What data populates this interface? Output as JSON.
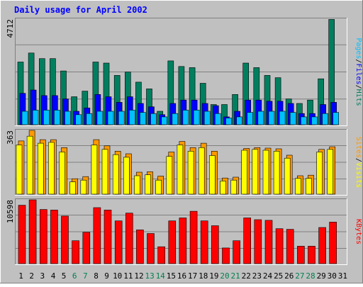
{
  "title": "Daily usage for April 2002",
  "colors": {
    "background": "#c0c0c0",
    "title": "#0000ff",
    "hits": "#007f5f",
    "files": "#0000ff",
    "pages": "#00c0ff",
    "visits": "#ff9900",
    "sites": "#ffff00",
    "kbytes": "#ff0000",
    "weekday_label": "#000000",
    "weekend_label": "#00804f"
  },
  "chart_data": [
    {
      "type": "bar",
      "title": "Daily usage for April 2002",
      "categories": [
        "1",
        "2",
        "3",
        "4",
        "5",
        "6",
        "7",
        "8",
        "9",
        "10",
        "11",
        "12",
        "13",
        "14",
        "15",
        "16",
        "17",
        "18",
        "19",
        "20",
        "21",
        "22",
        "23",
        "24",
        "25",
        "26",
        "27",
        "28",
        "29",
        "30",
        "31"
      ],
      "weekend_days": [
        "6",
        "7",
        "13",
        "14",
        "20",
        "21",
        "27",
        "28"
      ],
      "ymax_label": "4712",
      "ylim": [
        0,
        4712
      ],
      "series": [
        {
          "name": "Hits",
          "values": [
            2800,
            3200,
            2950,
            2950,
            2400,
            1250,
            1500,
            2800,
            2750,
            2200,
            2350,
            1900,
            1600,
            600,
            2850,
            2600,
            2550,
            1850,
            900,
            900,
            1350,
            2750,
            2550,
            2200,
            2100,
            1150,
            950,
            1100,
            2050,
            4700,
            null
          ]
        },
        {
          "name": "Files",
          "values": [
            1400,
            1550,
            1300,
            1300,
            1150,
            600,
            750,
            1350,
            1250,
            1000,
            1250,
            950,
            800,
            450,
            950,
            1100,
            1100,
            950,
            850,
            350,
            600,
            1100,
            1100,
            1050,
            1050,
            950,
            500,
            500,
            900,
            1000,
            null
          ]
        },
        {
          "name": "Pages",
          "values": [
            600,
            650,
            650,
            650,
            600,
            450,
            500,
            600,
            600,
            600,
            650,
            550,
            500,
            350,
            500,
            650,
            650,
            600,
            500,
            300,
            350,
            550,
            600,
            600,
            600,
            550,
            350,
            350,
            500,
            550,
            null
          ]
        }
      ],
      "legend": [
        "Pages",
        "Files",
        "Hits"
      ]
    },
    {
      "type": "bar",
      "categories": [
        "1",
        "2",
        "3",
        "4",
        "5",
        "6",
        "7",
        "8",
        "9",
        "10",
        "11",
        "12",
        "13",
        "14",
        "15",
        "16",
        "17",
        "18",
        "19",
        "20",
        "21",
        "22",
        "23",
        "24",
        "25",
        "26",
        "27",
        "28",
        "29",
        "30",
        "31"
      ],
      "ymax_label": "363",
      "ylim": [
        0,
        363
      ],
      "series": [
        {
          "name": "Visits",
          "values": [
            303,
            363,
            310,
            310,
            265,
            88,
            100,
            310,
            275,
            245,
            230,
            125,
            128,
            103,
            240,
            300,
            265,
            290,
            245,
            92,
            97,
            260,
            265,
            262,
            258,
            222,
            105,
            108,
            255,
            270,
            null
          ]
        },
        {
          "name": "Sites",
          "values": [
            280,
            330,
            290,
            295,
            240,
            70,
            80,
            280,
            255,
            225,
            210,
            105,
            110,
            80,
            215,
            280,
            245,
            265,
            220,
            75,
            80,
            250,
            255,
            250,
            245,
            205,
            90,
            90,
            240,
            255,
            null
          ]
        }
      ],
      "legend": [
        "Sites",
        "Visits"
      ]
    },
    {
      "type": "bar",
      "categories": [
        "1",
        "2",
        "3",
        "4",
        "5",
        "6",
        "7",
        "8",
        "9",
        "10",
        "11",
        "12",
        "13",
        "14",
        "15",
        "16",
        "17",
        "18",
        "19",
        "20",
        "21",
        "22",
        "23",
        "24",
        "25",
        "26",
        "27",
        "28",
        "29",
        "30",
        "31"
      ],
      "ymax_label": "10598",
      "ylim": [
        0,
        10598
      ],
      "series": [
        {
          "name": "KBytes",
          "values": [
            9700,
            10600,
            9000,
            8900,
            7900,
            3800,
            5200,
            9300,
            8900,
            7100,
            8400,
            5600,
            5000,
            2800,
            7100,
            7600,
            8700,
            7100,
            6300,
            2600,
            3800,
            7600,
            7300,
            7200,
            5800,
            5700,
            2900,
            2900,
            6000,
            6900,
            null
          ]
        }
      ],
      "legend": [
        "KBytes"
      ]
    }
  ],
  "side_labels": {
    "top": [
      {
        "text": "Pages",
        "color_key": "pages"
      },
      {
        "text": "/",
        "color_key": "weekday_label"
      },
      {
        "text": "Files",
        "color_key": "files"
      },
      {
        "text": "/",
        "color_key": "weekday_label"
      },
      {
        "text": "Hits",
        "color_key": "hits"
      }
    ],
    "mid": [
      {
        "text": "Sites",
        "color_key": "visits"
      },
      {
        "text": "/",
        "color_key": "weekday_label"
      },
      {
        "text": "Visits",
        "color_key": "sites"
      }
    ],
    "bottom": [
      {
        "text": "KBytes",
        "color_key": "kbytes"
      }
    ]
  }
}
